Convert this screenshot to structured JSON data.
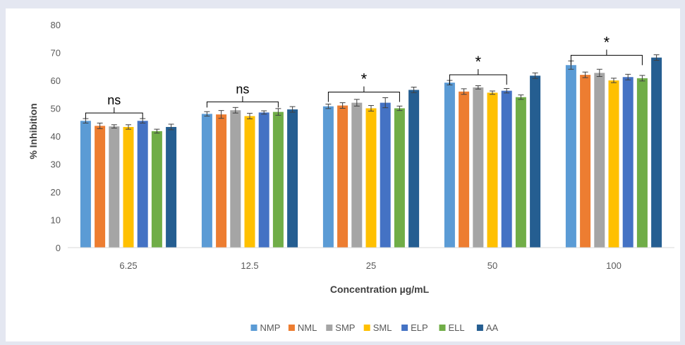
{
  "chart_data": {
    "type": "bar",
    "title": "",
    "xlabel": "Concentration µg/mL",
    "ylabel": "% Inhibition",
    "ylim": [
      0,
      80
    ],
    "yticks": [
      0,
      10,
      20,
      30,
      40,
      50,
      60,
      70,
      80
    ],
    "grid": false,
    "legend_position": "bottom",
    "categories": [
      "6.25",
      "12.5",
      "25",
      "50",
      "100"
    ],
    "series": [
      {
        "name": "NMP",
        "color": "#5b9bd5",
        "values": [
          45.5,
          48.0,
          50.7,
          59.2,
          65.5
        ],
        "errors": [
          0.8,
          0.8,
          0.8,
          0.8,
          1.5
        ]
      },
      {
        "name": "NML",
        "color": "#ed7d31",
        "values": [
          43.7,
          47.8,
          51.0,
          56.0,
          62.0
        ],
        "errors": [
          1.0,
          1.4,
          1.0,
          1.0,
          1.0
        ]
      },
      {
        "name": "SMP",
        "color": "#a5a5a5",
        "values": [
          43.5,
          49.3,
          52.0,
          57.5,
          62.7
        ],
        "errors": [
          0.6,
          1.0,
          1.2,
          0.6,
          1.3
        ]
      },
      {
        "name": "SML",
        "color": "#ffc000",
        "values": [
          43.3,
          47.2,
          50.0,
          55.6,
          60.0
        ],
        "errors": [
          0.8,
          1.0,
          1.0,
          0.6,
          0.8
        ]
      },
      {
        "name": "ELP",
        "color": "#4472c4",
        "values": [
          45.5,
          48.5,
          52.0,
          56.3,
          61.2
        ],
        "errors": [
          0.8,
          0.6,
          1.8,
          0.8,
          1.0
        ]
      },
      {
        "name": "ELL",
        "color": "#70ad47",
        "values": [
          41.8,
          48.7,
          50.0,
          54.0,
          60.8
        ],
        "errors": [
          0.7,
          1.2,
          0.8,
          0.8,
          1.0
        ]
      },
      {
        "name": "AA",
        "color": "#255e91",
        "values": [
          43.3,
          49.6,
          56.6,
          61.7,
          68.2
        ],
        "errors": [
          1.0,
          1.0,
          1.0,
          1.0,
          1.0
        ]
      }
    ],
    "annotations": [
      {
        "category": "6.25",
        "text": "ns",
        "bracket_from_series": "NMP",
        "bracket_to_series": "ELP"
      },
      {
        "category": "12.5",
        "text": "ns",
        "bracket_from_series": "NMP",
        "bracket_to_series": "ELL"
      },
      {
        "category": "25",
        "text": "*",
        "bracket_from_series": "NMP",
        "bracket_to_series": "ELL"
      },
      {
        "category": "50",
        "text": "*",
        "bracket_from_series": "NMP",
        "bracket_to_series": "ELP"
      },
      {
        "category": "100",
        "text": "*",
        "bracket_from_series": "NMP",
        "bracket_to_series": "ELL"
      }
    ]
  }
}
